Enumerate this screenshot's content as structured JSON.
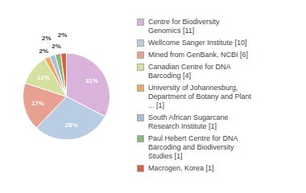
{
  "chart_data": {
    "type": "pie",
    "categories": [
      "Centre for Biodiversity\nGenomics [11]",
      "Wellcome Sanger Institute [10]",
      "Mined from GenBank, NCBI [6]",
      "Canadian Centre for DNA\nBarcoding [4]",
      "University of Johannesburg,\nDepartment of Botany and Plant\n... [1]",
      "South African Sugarcane\nResearch Institute [1]",
      "Paul Hebert Centre for DNA\nBarcoding and Biodiversity\nStudies [1]",
      "Macrogen, Korea [1]"
    ],
    "values": [
      31,
      28,
      17,
      11,
      2,
      2,
      2,
      2
    ],
    "value_labels": [
      "31%",
      "28%",
      "17%",
      "11%",
      "2%",
      "2%",
      "2%",
      "2%"
    ],
    "colors": [
      "#d9b3d9",
      "#b8cce4",
      "#e8a090",
      "#d4e0a0",
      "#f0a860",
      "#a8c0d8",
      "#8db87a",
      "#d96040"
    ],
    "data_labels": true,
    "legend": "right"
  }
}
